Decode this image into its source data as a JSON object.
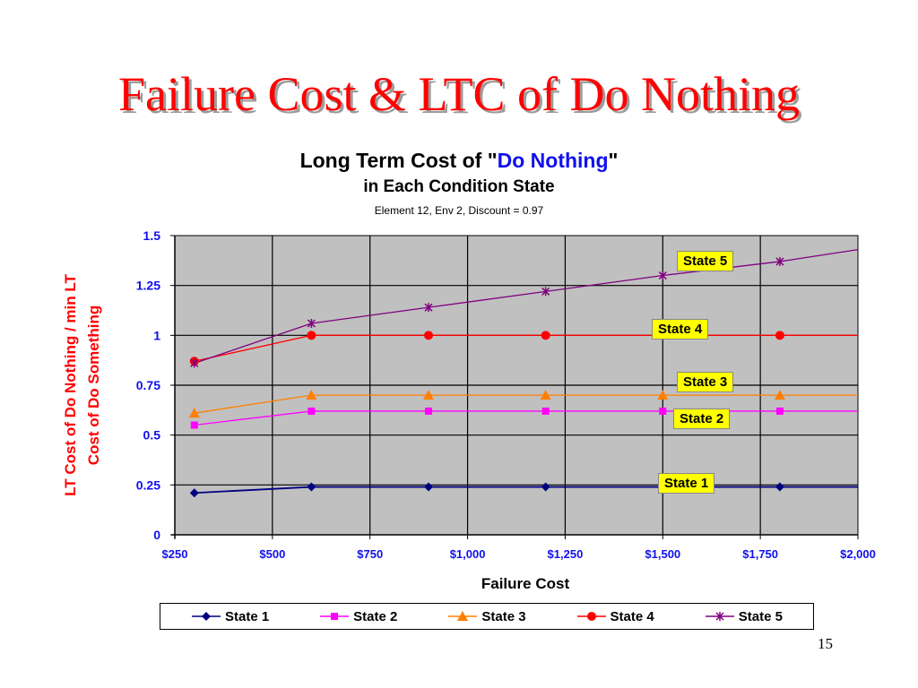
{
  "slide": {
    "title": "Failure Cost & LTC of Do Nothing",
    "page_number": "15"
  },
  "chart_data": {
    "type": "line",
    "title_part1": "Long Term Cost of \"",
    "title_highlight": "Do Nothing",
    "title_part2": "\"",
    "subtitle": "in Each Condition State",
    "note": "Element 12, Env 2, Discount = 0.97",
    "xlabel": "Failure Cost",
    "ylabel_line1": "LT Cost of Do Nothing / min LT",
    "ylabel_line2": "Cost of Do Something",
    "xlim": [
      250,
      2000
    ],
    "ylim": [
      0,
      1.5
    ],
    "x_ticks": [
      250,
      500,
      750,
      1000,
      1250,
      1500,
      1750,
      2000
    ],
    "x_tick_labels": [
      "$250",
      "$500",
      "$750",
      "$1,000",
      "$1,250",
      "$1,500",
      "$1,750",
      "$2,000"
    ],
    "y_ticks": [
      0,
      0.25,
      0.5,
      0.75,
      1,
      1.25,
      1.5
    ],
    "y_tick_labels": [
      "0",
      "0.25",
      "0.5",
      "0.75",
      "1",
      "1.25",
      "1.5"
    ],
    "grid": true,
    "plot_background": "#c0c0c0",
    "legend_position": "bottom",
    "x": [
      300,
      600,
      900,
      1200,
      1500,
      1800,
      2000
    ],
    "series": [
      {
        "name": "State 1",
        "color": "#000080",
        "marker": "diamond",
        "values": [
          0.21,
          0.24,
          0.24,
          0.24,
          0.24,
          0.24,
          0.24
        ],
        "marker_count": 6,
        "label": "State 1"
      },
      {
        "name": "State 2",
        "color": "#ff00ff",
        "marker": "square",
        "values": [
          0.55,
          0.62,
          0.62,
          0.62,
          0.62,
          0.62,
          0.62
        ],
        "marker_count": 6,
        "label": "State 2"
      },
      {
        "name": "State 3",
        "color": "#ff8000",
        "marker": "triangle",
        "values": [
          0.61,
          0.7,
          0.7,
          0.7,
          0.7,
          0.7,
          0.7
        ],
        "marker_count": 6,
        "label": "State 3"
      },
      {
        "name": "State 4",
        "color": "#ff0000",
        "marker": "circle",
        "values": [
          0.87,
          1.0,
          1.0,
          1.0,
          1.0,
          1.0,
          1.0
        ],
        "marker_count": 6,
        "label": "State  4"
      },
      {
        "name": "State 5",
        "color": "#800080",
        "marker": "star",
        "values": [
          0.86,
          1.06,
          1.14,
          1.22,
          1.3,
          1.37,
          1.43
        ],
        "marker_count": 6,
        "label": "State 5"
      }
    ]
  }
}
